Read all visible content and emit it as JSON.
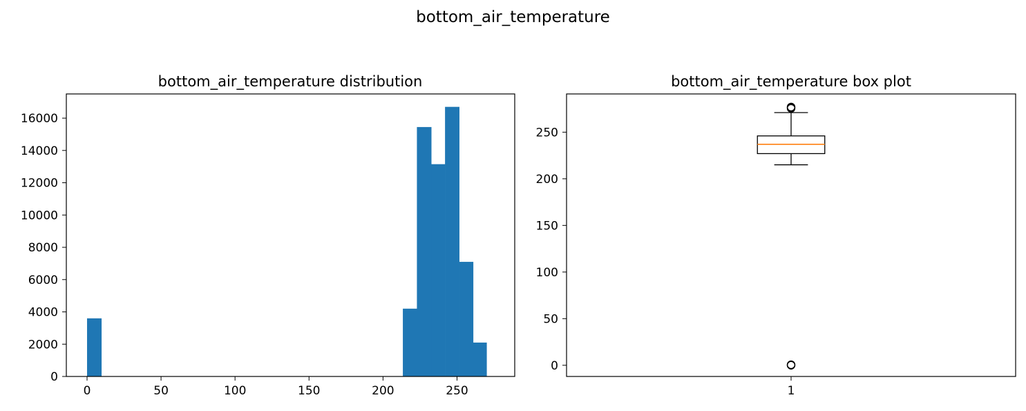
{
  "figure": {
    "suptitle": "bottom_air_temperature"
  },
  "colors": {
    "bar": "#1f77b4",
    "median": "#ff7f0e",
    "axis": "#000000",
    "background": "#ffffff"
  },
  "chart_data": [
    {
      "type": "bar",
      "title": "bottom_air_temperature distribution",
      "xlabel": "",
      "ylabel": "",
      "xlim": [
        -14,
        289
      ],
      "ylim": [
        0,
        17500
      ],
      "xticks": [
        0,
        50,
        100,
        150,
        200,
        250
      ],
      "yticks": [
        0,
        2000,
        4000,
        6000,
        8000,
        10000,
        12000,
        14000,
        16000
      ],
      "grid": false,
      "bins": [
        {
          "x0": 0,
          "x1": 9.7,
          "count": 3600
        },
        {
          "x0": 9.7,
          "x1": 19.4,
          "count": 0
        },
        {
          "x0": 19.4,
          "x1": 29.1,
          "count": 0
        },
        {
          "x0": 29.1,
          "x1": 38.8,
          "count": 0
        },
        {
          "x0": 38.8,
          "x1": 48.5,
          "count": 0
        },
        {
          "x0": 48.5,
          "x1": 58.2,
          "count": 0
        },
        {
          "x0": 58.2,
          "x1": 67.9,
          "count": 0
        },
        {
          "x0": 67.9,
          "x1": 77.6,
          "count": 0
        },
        {
          "x0": 77.6,
          "x1": 87.3,
          "count": 0
        },
        {
          "x0": 87.3,
          "x1": 97.0,
          "count": 0
        },
        {
          "x0": 97.0,
          "x1": 106.7,
          "count": 0
        },
        {
          "x0": 106.7,
          "x1": 116.4,
          "count": 0
        },
        {
          "x0": 116.4,
          "x1": 126.1,
          "count": 0
        },
        {
          "x0": 126.1,
          "x1": 135.8,
          "count": 0
        },
        {
          "x0": 135.8,
          "x1": 145.5,
          "count": 0
        },
        {
          "x0": 145.5,
          "x1": 155.2,
          "count": 0
        },
        {
          "x0": 155.2,
          "x1": 164.9,
          "count": 0
        },
        {
          "x0": 164.9,
          "x1": 174.6,
          "count": 0
        },
        {
          "x0": 174.6,
          "x1": 184.3,
          "count": 0
        },
        {
          "x0": 184.3,
          "x1": 194.0,
          "count": 0
        },
        {
          "x0": 194.0,
          "x1": 203.7,
          "count": 0
        },
        {
          "x0": 203.7,
          "x1": 213.4,
          "count": 0
        },
        {
          "x0": 213.4,
          "x1": 222.9,
          "count": 4200
        },
        {
          "x0": 222.9,
          "x1": 232.6,
          "count": 15450
        },
        {
          "x0": 232.6,
          "x1": 241.9,
          "count": 13150
        },
        {
          "x0": 241.9,
          "x1": 251.5,
          "count": 16700
        },
        {
          "x0": 251.5,
          "x1": 260.9,
          "count": 7100
        },
        {
          "x0": 260.9,
          "x1": 270.0,
          "count": 2100
        }
      ]
    },
    {
      "type": "box",
      "title": "bottom_air_temperature box plot",
      "xlabel": "",
      "ylabel": "",
      "xlim": [
        0.5,
        1.5
      ],
      "ylim": [
        -12,
        291
      ],
      "xticks": [
        1
      ],
      "yticks": [
        0,
        50,
        100,
        150,
        200,
        250
      ],
      "grid": false,
      "boxes": [
        {
          "position": 1,
          "whisker_low": 215,
          "q1": 227,
          "median": 237,
          "q3": 246,
          "whisker_high": 271,
          "outliers": [
            0,
            0.3,
            0.6,
            275.5,
            276.5,
            277
          ]
        }
      ]
    }
  ]
}
